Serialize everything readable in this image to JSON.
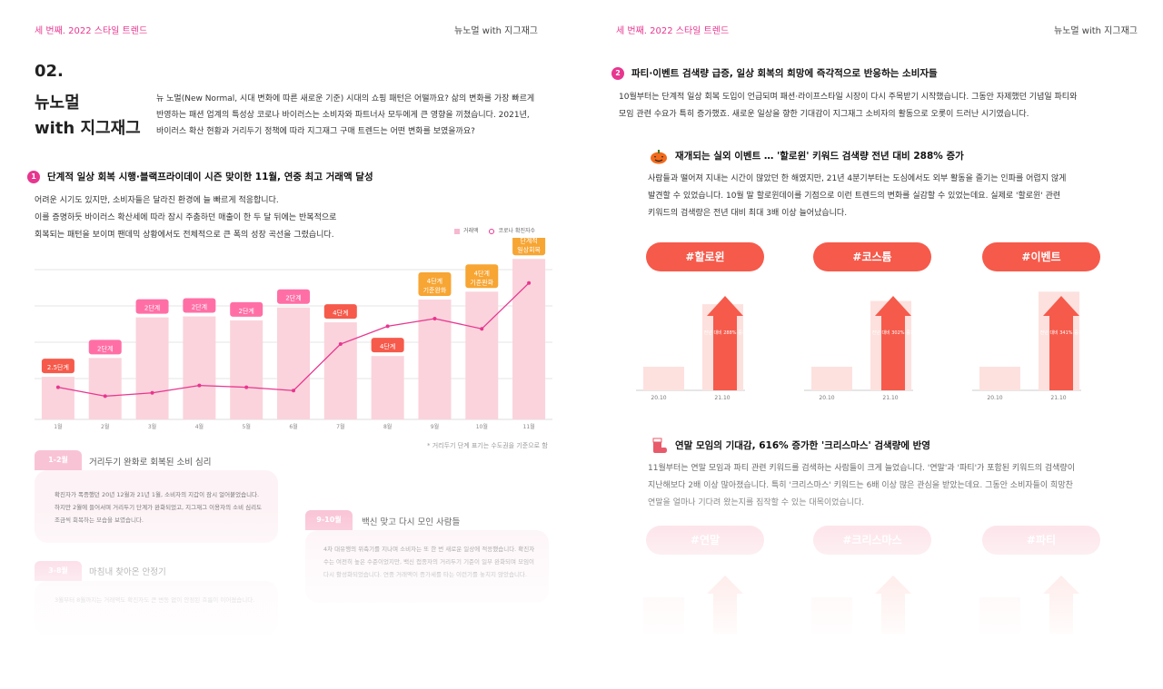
{
  "header": {
    "left_label": "세 번째. 2022 스타일 트렌드",
    "right_label": "뉴노멀 with 지그재그"
  },
  "left": {
    "number": "02.",
    "title_line1": "뉴노멀",
    "title_line2": "with 지그재그",
    "intro": "뉴 노멀(New Normal, 시대 변화에 따른 새로운 기준) 시대의 쇼핑 패턴은 어떨까요? 삶의 변화를 가장 빠르게 반영하는 패션 업계의 특성상 코로나 바이러스는 소비자와 파트너사 모두에게 큰 영향을 끼쳤습니다. 2021년, 바이러스 확산 현황과 거리두기 정책에 따라 지그재그 구매 트렌드는 어떤 변화를 보였을까요?",
    "section1": {
      "badge": "1",
      "heading": "단계적 일상 회복 시행·블랙프라이데이 시즌 맞이한 11월, 연중 최고 거래액 달성",
      "line1": "어려운 시기도 있지만, 소비자들은 달라진 환경에 늘 빠르게 적응합니다.",
      "line2": "이를 증명하듯 바이러스 확산세에 따라 잠시 주춤하던 매출이 한 두 달 뒤에는 반복적으로",
      "line3": "회복되는 패턴을 보이며 팬데믹 상황에서도 전체적으로 큰 폭의 성장 곡선을 그렸습니다."
    },
    "note": "* 거리두기 단계 표기는 수도권을 기준으로 함",
    "cards": [
      {
        "tag": "1-2월",
        "title": "거리두기 완화로 회복된 소비 심리",
        "text": "확진자가 폭증했던 20년 12월과 21년 1월, 소비자의 지갑이 잠시 얼어붙었습니다. 하지만 2월에 들어서며 거리두기 단계가 완화되었고, 지그재그 이용자의 소비 심리도 조금씩 회복하는 모습을 보였습니다."
      },
      {
        "tag": "9-10월",
        "title": "백신 맞고 다시 모인 사람들",
        "text": "4차 대유행의 위축기를 지나며 소비자는 또 한 번 새로운 일상에 적응했습니다. 확진자 수는 여전히 높은 수준이었지만, 백신 접종자의 거리두기 기준이 일부 완화되며 모임이 다시 활성화되었습니다. 연중 거래액이 증가세를 타는 이런기를 놓치지 않았습니다."
      },
      {
        "tag": "3-8월",
        "title": "마침내 찾아온 안정기",
        "text": "3월부터 8월까지는 거래액도 확진자도 큰 변동 없이 안정된 흐름이 이어졌습니다."
      }
    ]
  },
  "right": {
    "section2": {
      "badge": "2",
      "heading": "파티·이벤트 검색량 급증, 일상 회복의 희망에 즉각적으로 반응하는 소비자들",
      "line1": "10월부터는 단계적 일상 회복 도입이 언급되며 패션·라이프스타일 시장이 다시 주목받기 시작했습니다. 그동안 자제했던 기념일 파티와",
      "line2": "모임 관련 수요가 특히 증가했죠. 새로운 일상을 향한 기대감이 지그재그 소비자의 활동으로 오롯이 드러난 시기였습니다."
    },
    "sub1": {
      "heading": "재개되는 실외 이벤트 … '할로윈' 키워드 검색량 전년 대비 288% 증가",
      "icon": "pumpkin-icon",
      "line1": "사람들과 떨어져 지내는 시간이 많았던 한 해였지만, 21년 4분기부터는 도심에서도 외부 활동을 즐기는 인파를 어렵지 않게",
      "line2": "발견할 수 있었습니다. 10월 말 할로윈데이를 기점으로 이런 트렌드의 변화를 실감할 수 있었는데요. 실제로 '할로윈' 관련",
      "line3": "키워드의 검색량은 전년 대비 최대 3배 이상 늘어났습니다."
    },
    "keywords1": [
      {
        "label": "#할로윈",
        "text": "전년 대비 288% 증가",
        "before": 20.1,
        "x_before": "20.10",
        "x_after": "21.10",
        "ratio": 3.88
      },
      {
        "label": "#코스튬",
        "text": "전년 대비 302% 증가",
        "x_before": "20.10",
        "x_after": "21.10",
        "ratio": 4.02
      },
      {
        "label": "#이벤트",
        "text": "전년 대비 341% 증가",
        "x_before": "20.10",
        "x_after": "21.10",
        "ratio": 4.41
      }
    ],
    "sub2": {
      "heading": "연말 모임의 기대감, 616% 증가한 '크리스마스' 검색량에 반영",
      "icon": "sock-icon",
      "line1": "11월부터는 연말 모임과 파티 관련 키워드를 검색하는 사람들이 크게 늘었습니다. '연말'과 '파티'가 포함된 키워드의 검색량이",
      "line2": "지난해보다 2배 이상 많아졌습니다. 특히 '크리스마스' 키워드는 6배 이상 많은 관심을 받았는데요. 그동안 소비자들이 희망찬",
      "line3": "연말을 얼마나 기다려 왔는지를 짐작할 수 있는 대목이었습니다."
    },
    "keywords2": [
      {
        "label": "#연말"
      },
      {
        "label": "#크리스마스"
      },
      {
        "label": "#파티"
      }
    ]
  },
  "chart_data": {
    "type": "bar",
    "categories": [
      "1월",
      "2월",
      "3월",
      "4월",
      "5월",
      "6월",
      "7월",
      "8월",
      "9월",
      "10월",
      "11월"
    ],
    "series": [
      {
        "name": "거래액",
        "values": [
          0.43,
          0.62,
          1.03,
          1.04,
          1.0,
          1.13,
          0.98,
          0.64,
          1.21,
          1.29,
          1.62
        ]
      },
      {
        "name": "코로나 확진자수",
        "values": [
          0.55,
          0.2,
          0.33,
          0.62,
          0.55,
          0.42,
          2.25,
          2.95,
          3.25,
          2.85,
          4.65
        ]
      }
    ],
    "stage_labels": [
      "2.5단계",
      "2단계",
      "2단계",
      "2단계",
      "2단계",
      "2단계",
      "4단계",
      "4단계",
      "4단계\n기준완화",
      "4단계\n기준완화",
      "단계적\n일상회복"
    ],
    "stage_colors": [
      "#f65a4b",
      "#ff6fa6",
      "#ff6fa6",
      "#ff6fa6",
      "#ff6fa6",
      "#ff6fa6",
      "#f65a4b",
      "#f65a4b",
      "#f7a533",
      "#f7a533",
      "#f7a533"
    ],
    "colors": {
      "bar": "#fbd3dc",
      "line": "#e8368f",
      "grid": "#e5e5e5"
    }
  }
}
